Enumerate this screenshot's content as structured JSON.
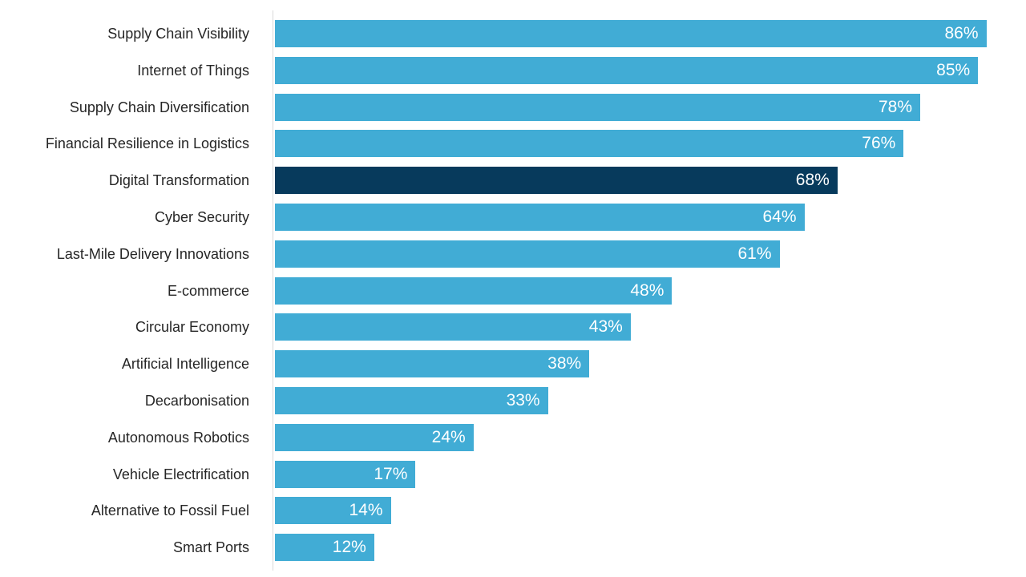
{
  "chart_data": {
    "type": "bar",
    "orientation": "horizontal",
    "xlim": [
      0,
      100
    ],
    "grid": false,
    "legend": false,
    "categories": [
      "Supply Chain Visibility",
      "Internet of Things",
      "Supply Chain Diversification",
      "Financial Resilience in Logistics",
      "Digital Transformation",
      "Cyber Security",
      "Last-Mile Delivery Innovations",
      "E-commerce",
      "Circular Economy",
      "Artificial Intelligence",
      "Decarbonisation",
      "Autonomous Robotics",
      "Vehicle Electrification",
      "Alternative to Fossil Fuel",
      "Smart Ports"
    ],
    "values": [
      86,
      85,
      78,
      76,
      68,
      64,
      61,
      48,
      43,
      38,
      33,
      24,
      17,
      14,
      12
    ],
    "value_labels": [
      "86%",
      "85%",
      "78%",
      "76%",
      "68%",
      "64%",
      "61%",
      "48%",
      "43%",
      "38%",
      "33%",
      "24%",
      "17%",
      "14%",
      "12%"
    ],
    "highlighted_category": "Digital Transformation",
    "highlight_index": 4,
    "colors": {
      "bar": "#41acd5",
      "highlight_bar": "#073a5c",
      "value_label": "#ffffff",
      "category_label": "#262626",
      "axis_line": "#d9d9d9",
      "background": "#ffffff"
    }
  }
}
